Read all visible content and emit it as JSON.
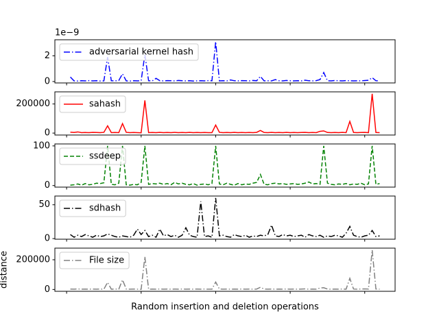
{
  "chart_data": [
    {
      "type": "line",
      "offset_text": "1e−9",
      "legend": "upper left",
      "xlim": [
        -3.15,
        88.15
      ],
      "xticks": [
        0,
        20,
        40,
        60,
        80
      ],
      "ylim": [
        -1.1e-10,
        3.25e-09
      ],
      "yticks": [
        0,
        {
          "value": 2e-09,
          "label": "2"
        }
      ],
      "x": [
        1,
        2,
        3,
        4,
        5,
        6,
        7,
        8,
        9,
        10,
        11,
        12,
        13,
        14,
        15,
        16,
        17,
        18,
        19,
        20,
        21,
        22,
        23,
        24,
        25,
        26,
        27,
        28,
        29,
        30,
        31,
        32,
        33,
        34,
        35,
        36,
        37,
        38,
        39,
        40,
        41,
        42,
        43,
        44,
        45,
        46,
        47,
        48,
        49,
        50,
        51,
        52,
        53,
        54,
        55,
        56,
        57,
        58,
        59,
        60,
        61,
        62,
        63,
        64,
        65,
        66,
        67,
        68,
        69,
        70,
        71,
        72,
        73,
        74,
        75,
        76,
        77,
        78,
        79,
        80,
        81,
        82,
        83,
        84
      ],
      "series": [
        {
          "name": "adversarial kernel hash",
          "color": "#0000ff",
          "linestyle": "-.",
          "values": [
            3.5e-10,
            5e-11,
            4e-11,
            6e-11,
            5e-11,
            7e-11,
            5e-11,
            6e-11,
            4e-11,
            5e-11,
            1.9e-09,
            6e-11,
            5e-11,
            8e-11,
            6e-10,
            5e-11,
            4e-11,
            6e-11,
            5e-11,
            7e-11,
            2.1e-09,
            6e-11,
            5e-11,
            2.5e-10,
            6e-11,
            5e-11,
            7e-11,
            6e-11,
            5e-11,
            8e-11,
            6e-11,
            5e-11,
            6e-11,
            4e-11,
            5e-11,
            6e-11,
            5e-11,
            7e-11,
            6e-11,
            3.1e-09,
            5e-11,
            6e-11,
            5e-11,
            1.2e-10,
            6e-11,
            5e-11,
            7e-11,
            6e-11,
            5e-11,
            8e-11,
            6e-11,
            4e-10,
            5e-11,
            6e-11,
            5e-11,
            1.5e-10,
            6e-11,
            5e-11,
            8e-11,
            6e-11,
            5e-11,
            6e-11,
            5e-11,
            1e-10,
            6e-11,
            5e-11,
            7e-11,
            1.5e-10,
            7e-10,
            6e-11,
            5e-11,
            8e-11,
            6e-11,
            5e-11,
            7e-11,
            6e-11,
            5e-11,
            6e-11,
            5e-11,
            8e-11,
            1e-10,
            3e-10,
            6e-11,
            5e-11
          ]
        }
      ]
    },
    {
      "type": "line",
      "legend": "upper left",
      "xlim": [
        -3.15,
        88.15
      ],
      "xticks": [
        0,
        20,
        40,
        60,
        80
      ],
      "ylim": [
        -13450,
        283450
      ],
      "yticks": [
        0,
        200000
      ],
      "x": [
        1,
        2,
        3,
        4,
        5,
        6,
        7,
        8,
        9,
        10,
        11,
        12,
        13,
        14,
        15,
        16,
        17,
        18,
        19,
        20,
        21,
        22,
        23,
        24,
        25,
        26,
        27,
        28,
        29,
        30,
        31,
        32,
        33,
        34,
        35,
        36,
        37,
        38,
        39,
        40,
        41,
        42,
        43,
        44,
        45,
        46,
        47,
        48,
        49,
        50,
        51,
        52,
        53,
        54,
        55,
        56,
        57,
        58,
        59,
        60,
        61,
        62,
        63,
        64,
        65,
        66,
        67,
        68,
        69,
        70,
        71,
        72,
        73,
        74,
        75,
        76,
        77,
        78,
        79,
        80,
        81,
        82,
        83,
        84
      ],
      "series": [
        {
          "name": "sahash",
          "color": "#ff0000",
          "linestyle": "-",
          "values": [
            6000,
            4000,
            8000,
            3000,
            4000,
            3000,
            5000,
            4000,
            3000,
            5000,
            50000,
            3000,
            4000,
            3000,
            65000,
            5000,
            3000,
            4000,
            3000,
            2000,
            225000,
            3000,
            4000,
            3000,
            5000,
            3000,
            4000,
            3000,
            5000,
            3000,
            4000,
            3000,
            5000,
            3000,
            4000,
            3000,
            4000,
            3000,
            3000,
            55000,
            5000,
            3000,
            4000,
            3000,
            5000,
            3000,
            4000,
            3000,
            4000,
            3000,
            5000,
            18000,
            4000,
            3000,
            5000,
            3000,
            4000,
            3000,
            5000,
            3000,
            4000,
            3000,
            4000,
            5000,
            3000,
            4000,
            3000,
            12000,
            15000,
            4000,
            3000,
            4000,
            3000,
            5000,
            3000,
            80000,
            4000,
            3000,
            4000,
            5000,
            3000,
            270000,
            4000,
            3000
          ]
        }
      ]
    },
    {
      "type": "line",
      "legend": "upper left",
      "xlim": [
        -3.15,
        88.15
      ],
      "xticks": [
        0,
        20,
        40,
        60,
        80
      ],
      "ylim": [
        -3.95,
        104.95
      ],
      "yticks": [
        0,
        100
      ],
      "x": [
        1,
        2,
        3,
        4,
        5,
        6,
        7,
        8,
        9,
        10,
        11,
        12,
        13,
        14,
        15,
        16,
        17,
        18,
        19,
        20,
        21,
        22,
        23,
        24,
        25,
        26,
        27,
        28,
        29,
        30,
        31,
        32,
        33,
        34,
        35,
        36,
        37,
        38,
        39,
        40,
        41,
        42,
        43,
        44,
        45,
        46,
        47,
        48,
        49,
        50,
        51,
        52,
        53,
        54,
        55,
        56,
        57,
        58,
        59,
        60,
        61,
        62,
        63,
        64,
        65,
        66,
        67,
        68,
        69,
        70,
        71,
        72,
        73,
        74,
        75,
        76,
        77,
        78,
        79,
        80,
        81,
        82,
        83,
        84
      ],
      "series": [
        {
          "name": "ssdeep",
          "color": "#008000",
          "linestyle": "--",
          "values": [
            1,
            2,
            4,
            1,
            5,
            2,
            3,
            6,
            5,
            7,
            100,
            3,
            2,
            6,
            100,
            2,
            1,
            3,
            2,
            8,
            100,
            3,
            5,
            4,
            6,
            3,
            5,
            2,
            8,
            4,
            6,
            3,
            2,
            5,
            1,
            3,
            4,
            2,
            5,
            100,
            4,
            2,
            6,
            3,
            1,
            5,
            2,
            4,
            3,
            6,
            8,
            28,
            3,
            2,
            5,
            6,
            4,
            5,
            3,
            4,
            5,
            3,
            4,
            6,
            9,
            4,
            5,
            3,
            100,
            6,
            3,
            2,
            4,
            3,
            5,
            2,
            4,
            3,
            6,
            2,
            4,
            100,
            3,
            5
          ]
        }
      ]
    },
    {
      "type": "line",
      "legend": "upper left",
      "xlim": [
        -3.15,
        88.15
      ],
      "xticks": [
        0,
        20,
        40,
        60,
        80
      ],
      "ylim": [
        -0.9,
        62.9
      ],
      "yticks": [
        0,
        50
      ],
      "x": [
        1,
        2,
        3,
        4,
        5,
        6,
        7,
        8,
        9,
        10,
        11,
        12,
        13,
        14,
        15,
        16,
        17,
        18,
        19,
        20,
        21,
        22,
        23,
        24,
        25,
        26,
        27,
        28,
        29,
        30,
        31,
        32,
        33,
        34,
        35,
        36,
        37,
        38,
        39,
        40,
        41,
        42,
        43,
        44,
        45,
        46,
        47,
        48,
        49,
        50,
        51,
        52,
        53,
        54,
        55,
        56,
        57,
        58,
        59,
        60,
        61,
        62,
        63,
        64,
        65,
        66,
        67,
        68,
        69,
        70,
        71,
        72,
        73,
        74,
        75,
        76,
        77,
        78,
        79,
        80,
        81,
        82,
        83,
        84
      ],
      "series": [
        {
          "name": "sdhash",
          "color": "#000000",
          "linestyle": "-.",
          "values": [
            6,
            2,
            5,
            3,
            6,
            4,
            2,
            5,
            3,
            4,
            7,
            5,
            3,
            2,
            4,
            3,
            2,
            5,
            14,
            6,
            12,
            3,
            5,
            2,
            14,
            4,
            6,
            3,
            5,
            2,
            5,
            16,
            5,
            3,
            2,
            55,
            3,
            4,
            2,
            60,
            4,
            5,
            3,
            2,
            6,
            4,
            3,
            5,
            2,
            4,
            3,
            5,
            4,
            6,
            20,
            4,
            3,
            6,
            4,
            5,
            3,
            4,
            5,
            2,
            6,
            4,
            3,
            5,
            2,
            4,
            3,
            5,
            4,
            2,
            8,
            18,
            5,
            3,
            2,
            4,
            5,
            12,
            3,
            4
          ]
        }
      ]
    },
    {
      "type": "line",
      "legend": "upper left",
      "xlabel": "Random insertion and deletion operations",
      "ylabel": "distance",
      "xlim": [
        -3.15,
        88.15
      ],
      "xticks": [
        0,
        20,
        40,
        60,
        80
      ],
      "ylim": [
        -12200,
        278200
      ],
      "yticks": [
        0,
        200000
      ],
      "x": [
        1,
        2,
        3,
        4,
        5,
        6,
        7,
        8,
        9,
        10,
        11,
        12,
        13,
        14,
        15,
        16,
        17,
        18,
        19,
        20,
        21,
        22,
        23,
        24,
        25,
        26,
        27,
        28,
        29,
        30,
        31,
        32,
        33,
        34,
        35,
        36,
        37,
        38,
        39,
        40,
        41,
        42,
        43,
        44,
        45,
        46,
        47,
        48,
        49,
        50,
        51,
        52,
        53,
        54,
        55,
        56,
        57,
        58,
        59,
        60,
        61,
        62,
        63,
        64,
        65,
        66,
        67,
        68,
        69,
        70,
        71,
        72,
        73,
        74,
        75,
        76,
        77,
        78,
        79,
        80,
        81,
        82,
        83,
        84
      ],
      "series": [
        {
          "name": "File size",
          "color": "#808080",
          "linestyle": "-.",
          "values": [
            3000,
            2000,
            4000,
            2000,
            3000,
            2000,
            3000,
            2000,
            3000,
            2000,
            48000,
            2000,
            3000,
            2000,
            65000,
            3000,
            2000,
            3000,
            2000,
            1000,
            220000,
            2000,
            3000,
            2000,
            3000,
            2000,
            3000,
            2000,
            3000,
            2000,
            3000,
            2000,
            3000,
            2000,
            3000,
            2000,
            3000,
            2000,
            2000,
            50000,
            3000,
            2000,
            3000,
            2000,
            3000,
            2000,
            3000,
            2000,
            3000,
            2000,
            3000,
            15000,
            3000,
            2000,
            3000,
            2000,
            3000,
            2000,
            3000,
            2000,
            3000,
            2000,
            3000,
            4000,
            2000,
            3000,
            2000,
            10000,
            12000,
            3000,
            2000,
            3000,
            2000,
            3000,
            2000,
            75000,
            3000,
            2000,
            3000,
            4000,
            3000,
            265000,
            3000,
            2000
          ]
        }
      ]
    }
  ]
}
